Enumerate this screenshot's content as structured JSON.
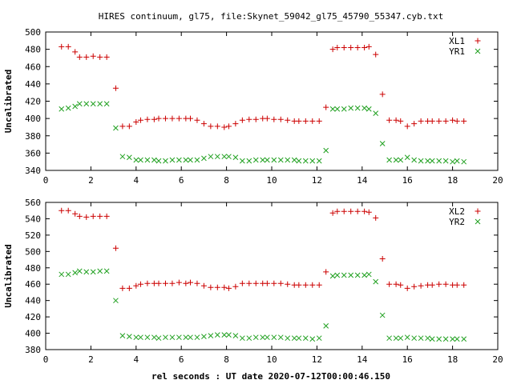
{
  "title": "HIRES continuum, gl75, file:Skynet_59042_gl75_45790_55347.cyb.txt",
  "xlabel": "rel seconds : UT date 2020-07-12T00:00:46.150",
  "colors": {
    "series_a": "#cc0000",
    "series_b": "#20a020"
  },
  "chart_data": [
    {
      "type": "scatter",
      "ylabel": "Uncalibrated",
      "xlim": [
        0,
        20
      ],
      "ylim": [
        340,
        500
      ],
      "x_ticks": [
        0,
        2,
        4,
        6,
        8,
        10,
        12,
        14,
        16,
        18,
        20
      ],
      "y_ticks": [
        340,
        360,
        380,
        400,
        420,
        440,
        460,
        480,
        500
      ],
      "legend_position": "top-right",
      "grid": false,
      "series": [
        {
          "name": "XL1",
          "marker": "plus",
          "points": [
            [
              0.7,
              483
            ],
            [
              1.0,
              483
            ],
            [
              1.3,
              477
            ],
            [
              1.5,
              471
            ],
            [
              1.8,
              471
            ],
            [
              2.1,
              472
            ],
            [
              2.4,
              471
            ],
            [
              2.7,
              471
            ],
            [
              3.1,
              435
            ],
            [
              3.4,
              391
            ],
            [
              3.7,
              391
            ],
            [
              4.0,
              396
            ],
            [
              4.2,
              398
            ],
            [
              4.5,
              399
            ],
            [
              4.8,
              399
            ],
            [
              5.0,
              400
            ],
            [
              5.3,
              400
            ],
            [
              5.6,
              400
            ],
            [
              5.9,
              400
            ],
            [
              6.2,
              400
            ],
            [
              6.4,
              400
            ],
            [
              6.7,
              398
            ],
            [
              7.0,
              394
            ],
            [
              7.3,
              391
            ],
            [
              7.6,
              391
            ],
            [
              7.9,
              390
            ],
            [
              8.1,
              391
            ],
            [
              8.4,
              394
            ],
            [
              8.7,
              398
            ],
            [
              9.0,
              399
            ],
            [
              9.3,
              399
            ],
            [
              9.6,
              400
            ],
            [
              9.8,
              400
            ],
            [
              10.1,
              399
            ],
            [
              10.4,
              399
            ],
            [
              10.7,
              398
            ],
            [
              11.0,
              397
            ],
            [
              11.2,
              397
            ],
            [
              11.5,
              397
            ],
            [
              11.8,
              397
            ],
            [
              12.1,
              397
            ],
            [
              12.4,
              413
            ],
            [
              12.7,
              480
            ],
            [
              12.9,
              482
            ],
            [
              13.2,
              482
            ],
            [
              13.5,
              482
            ],
            [
              13.8,
              482
            ],
            [
              14.1,
              482
            ],
            [
              14.3,
              483
            ],
            [
              14.6,
              474
            ],
            [
              14.9,
              428
            ],
            [
              15.2,
              398
            ],
            [
              15.5,
              398
            ],
            [
              15.7,
              397
            ],
            [
              16.0,
              391
            ],
            [
              16.3,
              394
            ],
            [
              16.6,
              397
            ],
            [
              16.9,
              397
            ],
            [
              17.1,
              397
            ],
            [
              17.4,
              397
            ],
            [
              17.7,
              397
            ],
            [
              18.0,
              398
            ],
            [
              18.2,
              397
            ],
            [
              18.5,
              397
            ]
          ]
        },
        {
          "name": "YR1",
          "marker": "cross",
          "points": [
            [
              0.7,
              411
            ],
            [
              1.0,
              412
            ],
            [
              1.3,
              414
            ],
            [
              1.5,
              417
            ],
            [
              1.8,
              417
            ],
            [
              2.1,
              417
            ],
            [
              2.4,
              417
            ],
            [
              2.7,
              417
            ],
            [
              3.1,
              389
            ],
            [
              3.4,
              356
            ],
            [
              3.7,
              355
            ],
            [
              4.0,
              352
            ],
            [
              4.2,
              352
            ],
            [
              4.5,
              352
            ],
            [
              4.8,
              352
            ],
            [
              5.0,
              351
            ],
            [
              5.3,
              351
            ],
            [
              5.6,
              352
            ],
            [
              5.9,
              352
            ],
            [
              6.2,
              352
            ],
            [
              6.4,
              352
            ],
            [
              6.7,
              352
            ],
            [
              7.0,
              354
            ],
            [
              7.3,
              356
            ],
            [
              7.6,
              356
            ],
            [
              7.9,
              356
            ],
            [
              8.1,
              356
            ],
            [
              8.4,
              355
            ],
            [
              8.7,
              351
            ],
            [
              9.0,
              351
            ],
            [
              9.3,
              352
            ],
            [
              9.6,
              352
            ],
            [
              9.8,
              352
            ],
            [
              10.1,
              352
            ],
            [
              10.4,
              352
            ],
            [
              10.7,
              352
            ],
            [
              11.0,
              352
            ],
            [
              11.2,
              351
            ],
            [
              11.5,
              351
            ],
            [
              11.8,
              351
            ],
            [
              12.1,
              351
            ],
            [
              12.4,
              363
            ],
            [
              12.7,
              411
            ],
            [
              12.9,
              411
            ],
            [
              13.2,
              411
            ],
            [
              13.5,
              412
            ],
            [
              13.8,
              412
            ],
            [
              14.1,
              412
            ],
            [
              14.3,
              411
            ],
            [
              14.6,
              406
            ],
            [
              14.9,
              371
            ],
            [
              15.2,
              352
            ],
            [
              15.5,
              352
            ],
            [
              15.7,
              352
            ],
            [
              16.0,
              355
            ],
            [
              16.3,
              352
            ],
            [
              16.6,
              351
            ],
            [
              16.9,
              351
            ],
            [
              17.1,
              351
            ],
            [
              17.4,
              351
            ],
            [
              17.7,
              351
            ],
            [
              18.0,
              350
            ],
            [
              18.2,
              351
            ],
            [
              18.5,
              350
            ]
          ]
        }
      ]
    },
    {
      "type": "scatter",
      "ylabel": "Uncalibrated",
      "xlim": [
        0,
        20
      ],
      "ylim": [
        380,
        560
      ],
      "x_ticks": [
        0,
        2,
        4,
        6,
        8,
        10,
        12,
        14,
        16,
        18,
        20
      ],
      "y_ticks": [
        380,
        400,
        420,
        440,
        460,
        480,
        500,
        520,
        540,
        560
      ],
      "legend_position": "top-right",
      "grid": false,
      "series": [
        {
          "name": "XL2",
          "marker": "plus",
          "points": [
            [
              0.7,
              550
            ],
            [
              1.0,
              550
            ],
            [
              1.3,
              546
            ],
            [
              1.5,
              543
            ],
            [
              1.8,
              542
            ],
            [
              2.1,
              543
            ],
            [
              2.4,
              543
            ],
            [
              2.7,
              543
            ],
            [
              3.1,
              504
            ],
            [
              3.4,
              455
            ],
            [
              3.7,
              455
            ],
            [
              4.0,
              458
            ],
            [
              4.2,
              460
            ],
            [
              4.5,
              461
            ],
            [
              4.8,
              461
            ],
            [
              5.0,
              461
            ],
            [
              5.3,
              461
            ],
            [
              5.6,
              461
            ],
            [
              5.9,
              462
            ],
            [
              6.2,
              461
            ],
            [
              6.4,
              462
            ],
            [
              6.7,
              461
            ],
            [
              7.0,
              458
            ],
            [
              7.3,
              456
            ],
            [
              7.6,
              456
            ],
            [
              7.9,
              456
            ],
            [
              8.1,
              455
            ],
            [
              8.4,
              457
            ],
            [
              8.7,
              461
            ],
            [
              9.0,
              461
            ],
            [
              9.3,
              461
            ],
            [
              9.6,
              461
            ],
            [
              9.8,
              461
            ],
            [
              10.1,
              461
            ],
            [
              10.4,
              461
            ],
            [
              10.7,
              460
            ],
            [
              11.0,
              459
            ],
            [
              11.2,
              459
            ],
            [
              11.5,
              459
            ],
            [
              11.8,
              459
            ],
            [
              12.1,
              459
            ],
            [
              12.4,
              475
            ],
            [
              12.7,
              547
            ],
            [
              12.9,
              549
            ],
            [
              13.2,
              549
            ],
            [
              13.5,
              549
            ],
            [
              13.8,
              549
            ],
            [
              14.1,
              549
            ],
            [
              14.3,
              548
            ],
            [
              14.6,
              541
            ],
            [
              14.9,
              491
            ],
            [
              15.2,
              460
            ],
            [
              15.5,
              460
            ],
            [
              15.7,
              459
            ],
            [
              16.0,
              455
            ],
            [
              16.3,
              457
            ],
            [
              16.6,
              458
            ],
            [
              16.9,
              459
            ],
            [
              17.1,
              459
            ],
            [
              17.4,
              460
            ],
            [
              17.7,
              460
            ],
            [
              18.0,
              459
            ],
            [
              18.2,
              459
            ],
            [
              18.5,
              459
            ]
          ]
        },
        {
          "name": "YR2",
          "marker": "cross",
          "points": [
            [
              0.7,
              472
            ],
            [
              1.0,
              472
            ],
            [
              1.3,
              474
            ],
            [
              1.5,
              476
            ],
            [
              1.8,
              475
            ],
            [
              2.1,
              475
            ],
            [
              2.4,
              476
            ],
            [
              2.7,
              476
            ],
            [
              3.1,
              440
            ],
            [
              3.4,
              397
            ],
            [
              3.7,
              396
            ],
            [
              4.0,
              395
            ],
            [
              4.2,
              395
            ],
            [
              4.5,
              395
            ],
            [
              4.8,
              395
            ],
            [
              5.0,
              394
            ],
            [
              5.3,
              395
            ],
            [
              5.6,
              395
            ],
            [
              5.9,
              395
            ],
            [
              6.2,
              395
            ],
            [
              6.4,
              395
            ],
            [
              6.7,
              395
            ],
            [
              7.0,
              396
            ],
            [
              7.3,
              397
            ],
            [
              7.6,
              398
            ],
            [
              7.9,
              398
            ],
            [
              8.1,
              398
            ],
            [
              8.4,
              397
            ],
            [
              8.7,
              394
            ],
            [
              9.0,
              394
            ],
            [
              9.3,
              395
            ],
            [
              9.6,
              395
            ],
            [
              9.8,
              395
            ],
            [
              10.1,
              395
            ],
            [
              10.4,
              395
            ],
            [
              10.7,
              394
            ],
            [
              11.0,
              394
            ],
            [
              11.2,
              394
            ],
            [
              11.5,
              394
            ],
            [
              11.8,
              393
            ],
            [
              12.1,
              394
            ],
            [
              12.4,
              409
            ],
            [
              12.7,
              470
            ],
            [
              12.9,
              471
            ],
            [
              13.2,
              471
            ],
            [
              13.5,
              471
            ],
            [
              13.8,
              471
            ],
            [
              14.1,
              471
            ],
            [
              14.3,
              472
            ],
            [
              14.6,
              463
            ],
            [
              14.9,
              422
            ],
            [
              15.2,
              394
            ],
            [
              15.5,
              394
            ],
            [
              15.7,
              394
            ],
            [
              16.0,
              395
            ],
            [
              16.3,
              394
            ],
            [
              16.6,
              394
            ],
            [
              16.9,
              394
            ],
            [
              17.1,
              393
            ],
            [
              17.4,
              393
            ],
            [
              17.7,
              393
            ],
            [
              18.0,
              393
            ],
            [
              18.2,
              393
            ],
            [
              18.5,
              393
            ]
          ]
        }
      ]
    }
  ]
}
